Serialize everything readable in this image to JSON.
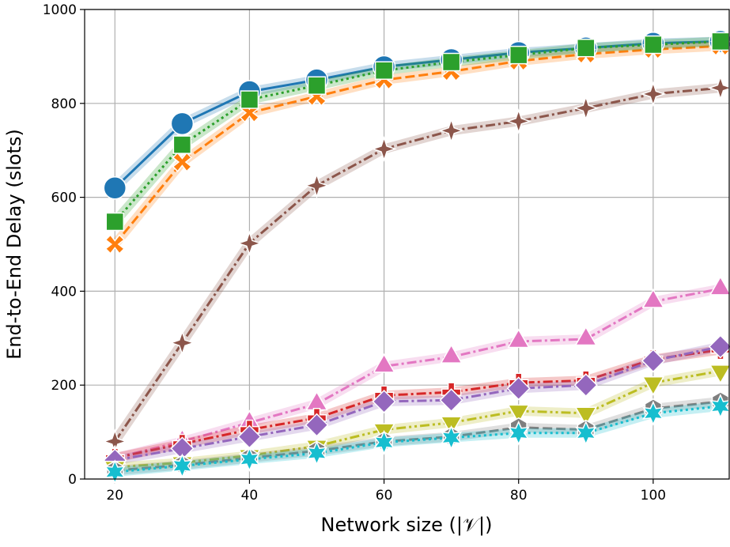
{
  "chart_data": {
    "type": "line",
    "x_label": "Network size (|𝒱|)",
    "y_label": "End-to-End Delay (slots)",
    "x": [
      20,
      30,
      40,
      50,
      60,
      70,
      80,
      90,
      100,
      110
    ],
    "xlim": [
      15.5,
      111.3
    ],
    "xticks": [
      20,
      40,
      60,
      80,
      100
    ],
    "ylim": [
      0,
      1000
    ],
    "yticks": [
      0,
      200,
      400,
      600,
      800,
      1000
    ],
    "grid": true,
    "series": [
      {
        "color": "#1f77b4",
        "marker": "circle",
        "linestyle": "solid",
        "values": [
          620,
          757,
          825,
          850,
          878,
          893,
          908,
          918,
          928,
          932
        ]
      },
      {
        "color": "#ff7f0e",
        "marker": "x",
        "linestyle": "dashed",
        "values": [
          500,
          675,
          780,
          815,
          850,
          868,
          890,
          905,
          915,
          922
        ]
      },
      {
        "color": "#2ca02c",
        "marker": "square",
        "linestyle": "dotted",
        "values": [
          548,
          712,
          808,
          838,
          870,
          888,
          903,
          918,
          925,
          932
        ]
      },
      {
        "color": "#8c564b",
        "marker": "star4",
        "linestyle": "dashdot",
        "values": [
          80,
          290,
          502,
          625,
          703,
          742,
          762,
          790,
          820,
          833
        ]
      },
      {
        "color": "#e377c2",
        "marker": "triangle-up",
        "linestyle": "dashdot",
        "values": [
          45,
          80,
          120,
          160,
          240,
          260,
          293,
          298,
          378,
          405
        ]
      },
      {
        "color": "#d62728",
        "marker": "plus",
        "linestyle": "dashdot",
        "values": [
          45,
          75,
          105,
          130,
          178,
          185,
          205,
          210,
          255,
          275
        ]
      },
      {
        "color": "#9467bd",
        "marker": "diamond",
        "linestyle": "dashdot",
        "values": [
          40,
          65,
          90,
          115,
          165,
          168,
          193,
          200,
          252,
          282
        ]
      },
      {
        "color": "#bcbd22",
        "marker": "triangle-down",
        "linestyle": "dashdotdot",
        "values": [
          25,
          35,
          50,
          70,
          105,
          120,
          145,
          140,
          205,
          230
        ]
      },
      {
        "color": "#7f7f7f",
        "marker": "hexagon",
        "linestyle": "dashed",
        "values": [
          18,
          30,
          45,
          60,
          80,
          90,
          110,
          105,
          150,
          165
        ]
      },
      {
        "color": "#17becf",
        "marker": "star6",
        "linestyle": "dotted",
        "values": [
          15,
          28,
          42,
          55,
          78,
          88,
          98,
          98,
          140,
          155
        ]
      }
    ]
  }
}
